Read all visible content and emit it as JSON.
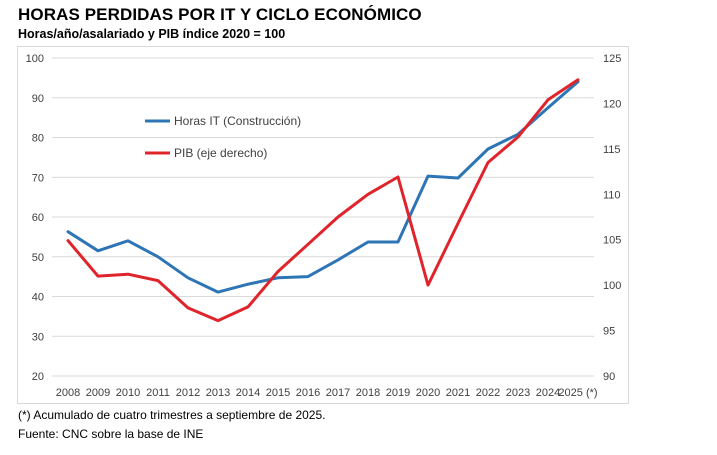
{
  "header": {
    "title": "HORAS PERDIDAS POR IT Y CICLO ECONÓMICO",
    "subtitle": "Horas/año/asalariado y PIB índice 2020 = 100"
  },
  "footer": {
    "note": "(*) Acumulado de cuatro trimestres a septiembre de 2025.",
    "source": "Fuente: CNC sobre la base de INE"
  },
  "colors": {
    "series_blue": "#2E75B6",
    "series_red": "#E0242B",
    "grid": "#d9d9d9",
    "axis_text": "#404040"
  },
  "chart_data": {
    "type": "line",
    "title": "HORAS PERDIDAS POR IT Y CICLO ECONÓMICO",
    "subtitle": "Horas/año/asalariado y PIB índice 2020 = 100",
    "categories": [
      "2008",
      "2009",
      "2010",
      "2011",
      "2012",
      "2013",
      "2014",
      "2015",
      "2016",
      "2017",
      "2018",
      "2019",
      "2020",
      "2021",
      "2022",
      "2023",
      "2024",
      "2025 (*)"
    ],
    "series": [
      {
        "name": "Horas IT (Construcción)",
        "axis": "left",
        "color": "#2E75B6",
        "values": [
          56.3,
          51.5,
          54.0,
          50.0,
          44.7,
          41.1,
          43.1,
          44.7,
          45.0,
          49.2,
          53.7,
          53.7,
          70.3,
          69.8,
          77.1,
          80.8,
          87.5,
          94.0
        ]
      },
      {
        "name": "PIB (eje derecho)",
        "axis": "right",
        "color": "#E0242B",
        "values": [
          104.9,
          101.0,
          101.2,
          100.5,
          97.5,
          96.1,
          97.6,
          101.5,
          104.5,
          107.5,
          110.0,
          111.9,
          100.0,
          106.8,
          113.5,
          116.3,
          120.4,
          122.6
        ]
      }
    ],
    "left_axis": {
      "min": 20,
      "max": 100,
      "ticks": [
        "20",
        "30",
        "40",
        "50",
        "60",
        "70",
        "80",
        "90",
        "100"
      ]
    },
    "right_axis": {
      "min": 90,
      "max": 125,
      "ticks": [
        "90",
        "95",
        "100",
        "105",
        "110",
        "115",
        "120",
        "125"
      ]
    },
    "legend": [
      "Horas IT (Construcción)",
      "PIB (eje derecho)"
    ],
    "legend_position": "upper-left inside plot",
    "grid": "horizontal"
  }
}
